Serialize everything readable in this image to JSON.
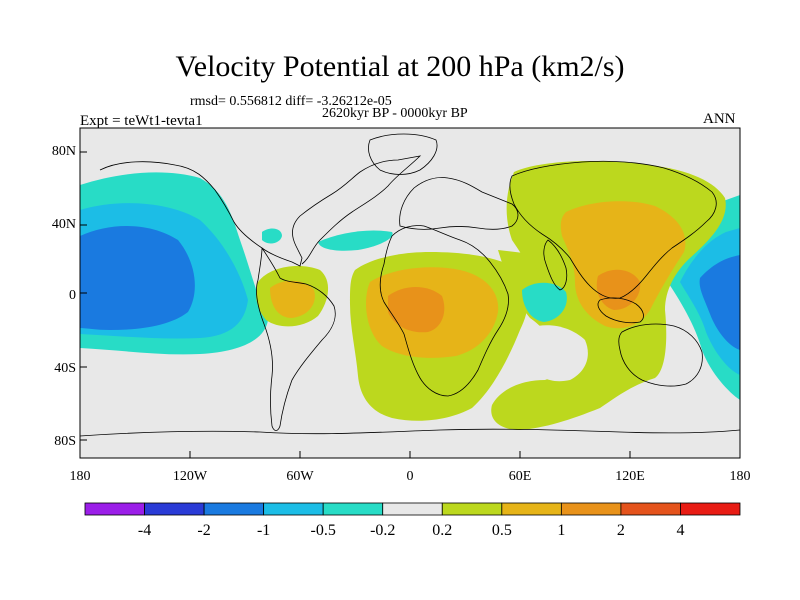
{
  "title": "Velocity Potential at 200 hPa (km2/s)",
  "stats": "rmsd= 0.556812 diff= -3.26212e-05",
  "period": "2620kyr BP - 0000kyr BP",
  "experiment": "Expt = teWt1-tevta1",
  "season": "ANN",
  "map": {
    "lon_range": [
      -180,
      180
    ],
    "lat_range": [
      -90,
      90
    ],
    "lat_ticks": [
      {
        "value": 80,
        "label": "80N"
      },
      {
        "value": 40,
        "label": "40N"
      },
      {
        "value": 0,
        "label": "0"
      },
      {
        "value": -40,
        "label": "40S"
      },
      {
        "value": -80,
        "label": "80S"
      }
    ],
    "lon_ticks": [
      {
        "value": -180,
        "label": "180"
      },
      {
        "value": -120,
        "label": "120W"
      },
      {
        "value": -60,
        "label": "60W"
      },
      {
        "value": 0,
        "label": "0"
      },
      {
        "value": 60,
        "label": "60E"
      },
      {
        "value": 120,
        "label": "120E"
      },
      {
        "value": 180,
        "label": "180"
      }
    ]
  },
  "colorbar": {
    "colors": [
      "#9b1ee8",
      "#2a3bd6",
      "#1a7ae0",
      "#1cbde6",
      "#28dcc6",
      "#e8e8e8",
      "#bcd81e",
      "#e6b418",
      "#e8921a",
      "#e4531c",
      "#e81c14"
    ],
    "labels": [
      "-4",
      "-2",
      "-1",
      "-0.5",
      "-0.2",
      "0.2",
      "0.5",
      "1",
      "2",
      "4"
    ]
  }
}
